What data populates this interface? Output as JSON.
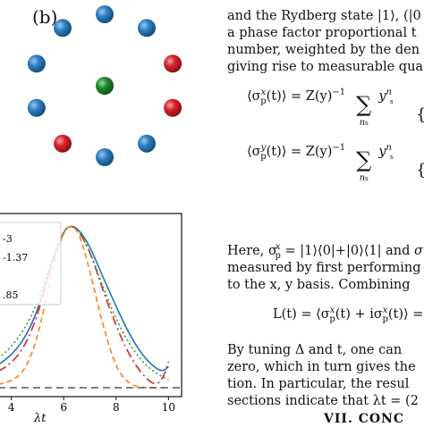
{
  "panel_label": "(b)",
  "lattice": {
    "outer_atoms": [
      "blue",
      "blue",
      "red",
      "red",
      "blue",
      "blue",
      "red",
      "blue",
      "blue",
      "blue"
    ],
    "center_atom": "green",
    "colors": {
      "blue": "#2f7fc4",
      "red": "#d9232b",
      "green": "#1e8a2e"
    }
  },
  "chart_data": {
    "type": "line",
    "xlabel": "λt",
    "x_ticks": [
      "4",
      "6",
      "8",
      "10"
    ],
    "xlim": [
      3.5,
      10.5
    ],
    "ylim": [
      0,
      1.05
    ],
    "legend_entries": [
      "-3",
      "-1.37",
      "",
      ".85"
    ],
    "series": [
      {
        "color": "#1f77b4",
        "dash": "",
        "x": [
          3.5,
          4,
          4.5,
          5,
          5.5,
          6,
          6.3,
          6.6,
          7,
          7.5,
          8,
          8.5,
          9,
          9.5,
          9.8,
          10
        ],
        "y": [
          0.14,
          0.2,
          0.3,
          0.47,
          0.75,
          0.97,
          1.0,
          0.97,
          0.87,
          0.68,
          0.5,
          0.33,
          0.2,
          0.12,
          0.1,
          0.13
        ]
      },
      {
        "color": "#d62728",
        "dash": "10 4 2 4",
        "x": [
          3.5,
          4,
          4.5,
          5,
          5.5,
          6,
          6.3,
          6.6,
          7,
          7.5,
          8,
          8.5,
          9,
          9.5,
          9.8,
          10
        ],
        "y": [
          0.1,
          0.15,
          0.25,
          0.44,
          0.74,
          0.97,
          1.0,
          0.96,
          0.84,
          0.6,
          0.38,
          0.2,
          0.08,
          0.01,
          0.06,
          0.16
        ]
      },
      {
        "color": "#2ca02c",
        "dash": "2 3",
        "x": [
          3.5,
          4,
          4.5,
          5,
          5.5,
          6,
          6.3,
          6.6,
          7,
          7.5,
          8,
          8.5,
          9,
          9.5,
          10
        ],
        "y": [
          0.18,
          0.25,
          0.36,
          0.52,
          0.78,
          0.97,
          1.0,
          0.96,
          0.84,
          0.62,
          0.42,
          0.27,
          0.16,
          0.09,
          0.05
        ]
      },
      {
        "color": "#ff7f0e",
        "dash": "6 4",
        "x": [
          3.5,
          4,
          4.5,
          5,
          5.5,
          6,
          6.3,
          6.6,
          7,
          7.5,
          8,
          8.5,
          9,
          9.5,
          10
        ],
        "y": [
          0.02,
          0.04,
          0.1,
          0.3,
          0.68,
          0.97,
          1.0,
          0.95,
          0.72,
          0.38,
          0.12,
          0.02,
          0.0,
          0.0,
          0.0
        ]
      },
      {
        "color": "#555555",
        "dash": "8 5",
        "x": [
          3.5,
          10.5
        ],
        "y": [
          0.0,
          0.0
        ]
      }
    ]
  },
  "text_lines": [
    "and the Rydberg state |1⟩, (|0",
    "a phase factor proportional t",
    "number, weighted by the den",
    "giving rise to measurable qua"
  ],
  "eq1": {
    "lhs": "⟨σ",
    "p": "p",
    "x": "x",
    "t": "(t)⟩ = Z(y)",
    "inv": "−1",
    "sum": "∑",
    "ns": "n",
    "s": "s",
    "y": "y",
    "brace": "{"
  },
  "eq2": {
    "lhs": "⟨σ",
    "p": "p",
    "y": "y",
    "t": "(t)⟩ = Z(y)",
    "inv": "−1",
    "sum": "∑",
    "ns": "n",
    "s": "s",
    "yy": "y",
    "brace": "{"
  },
  "para2": [
    "Here, σ",
    " = |1⟩⟨0|+|0⟩⟨1| and ",
    "measured by first performing",
    "to the x, y basis.  Combining"
  ],
  "eq3": "L(t) = ⟨σ",
  "eq3b": "(t) + iσ",
  "eq3c": "(t)⟩ =",
  "para3": [
    "By tuning Δ and t, one can",
    "zero, which in turn gives the",
    "tion.  In particular, the resul",
    "sections indicate that λt = (2"
  ],
  "section_heading": "VII.   CONC"
}
